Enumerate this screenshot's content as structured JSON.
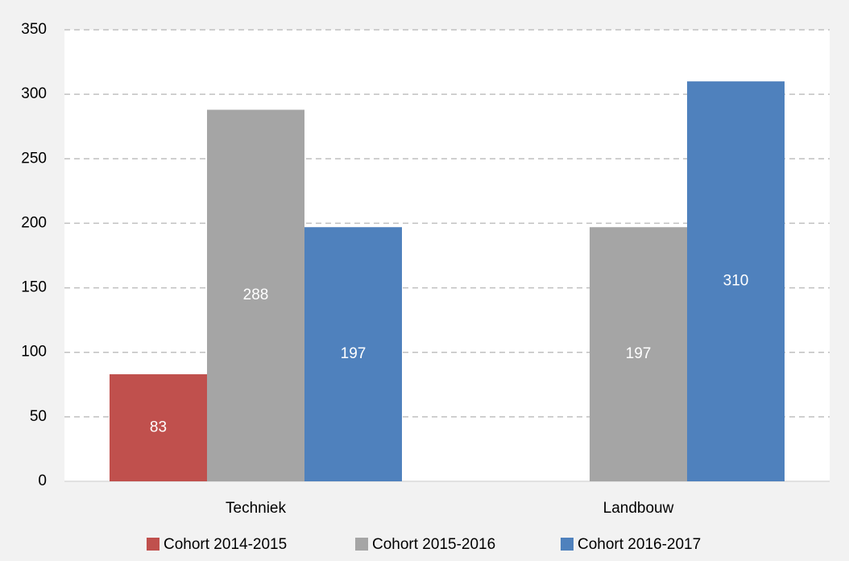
{
  "chart_data": {
    "type": "bar",
    "categories": [
      "Techniek",
      "Landbouw"
    ],
    "series": [
      {
        "name": "Cohort 2014-2015",
        "color": "#c0504d",
        "values": [
          83,
          null
        ]
      },
      {
        "name": "Cohort 2015-2016",
        "color": "#a5a5a5",
        "values": [
          288,
          197
        ]
      },
      {
        "name": "Cohort 2016-2017",
        "color": "#4f81bd",
        "values": [
          197,
          310
        ]
      }
    ],
    "ylim": [
      0,
      350
    ],
    "yticks": [
      0,
      50,
      100,
      150,
      200,
      250,
      300,
      350
    ],
    "grid": true,
    "legend": "bottom"
  }
}
